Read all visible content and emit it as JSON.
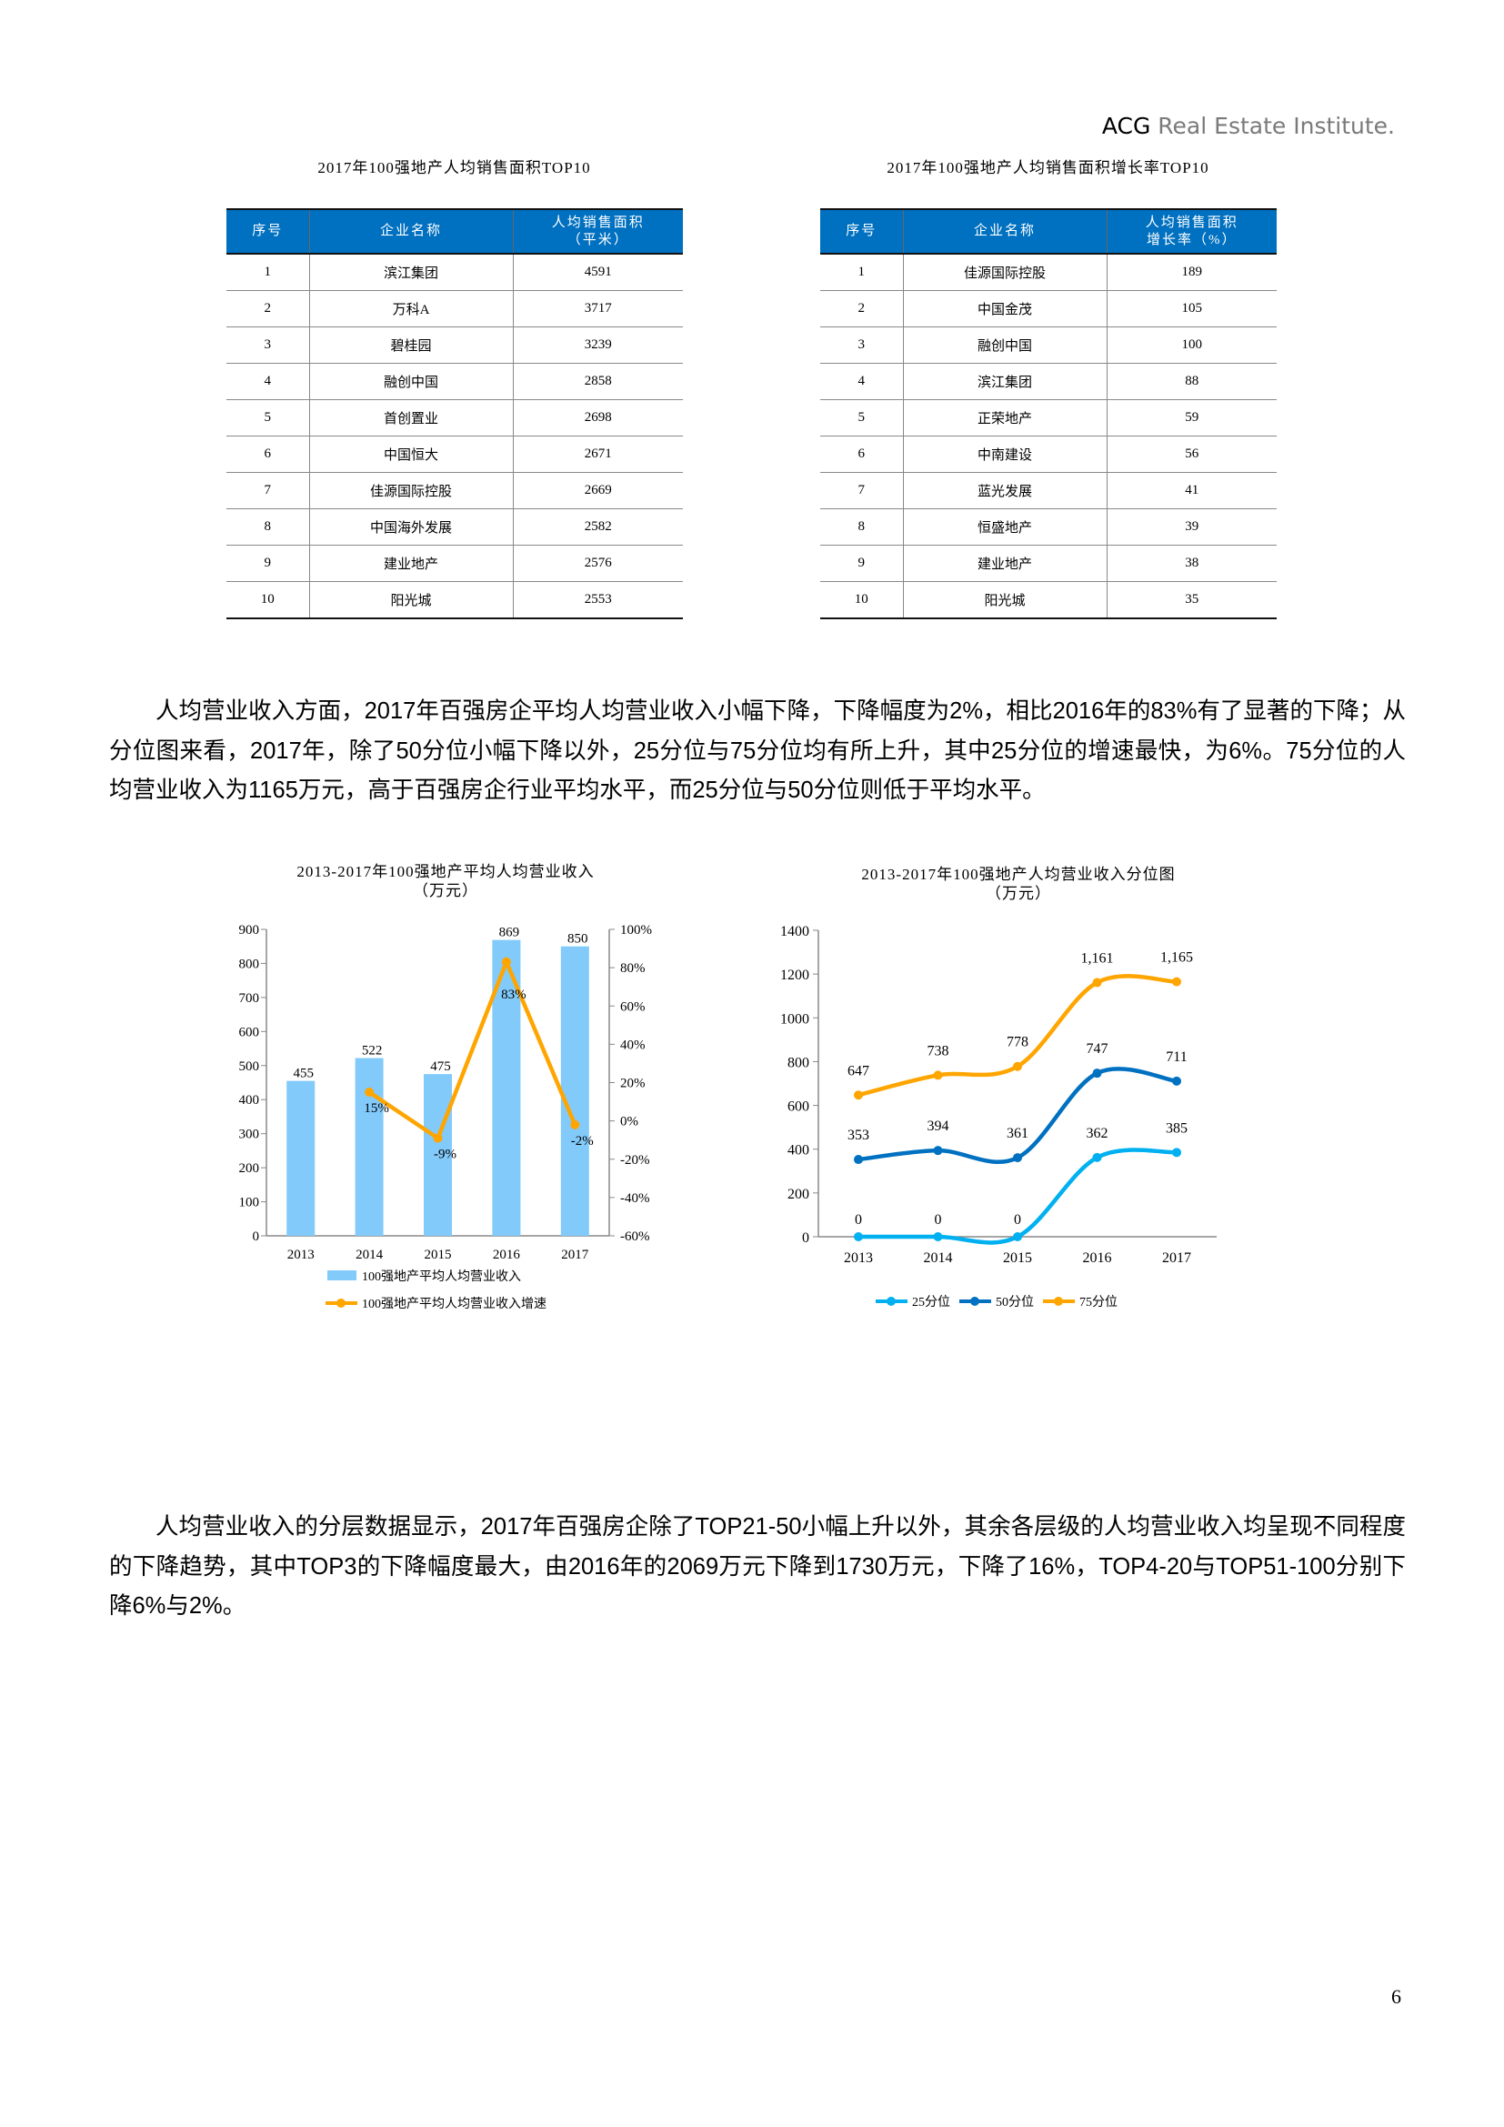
{
  "header": {
    "brand_bold": "ACG",
    "brand_rest": " Real Estate Institute."
  },
  "table1": {
    "title": "2017年100强地产人均销售面积TOP10",
    "headers": [
      "序号",
      "企业名称",
      "人均销售面积",
      "（平米）"
    ],
    "rows": [
      [
        "1",
        "滨江集团",
        "4591"
      ],
      [
        "2",
        "万科A",
        "3717"
      ],
      [
        "3",
        "碧桂园",
        "3239"
      ],
      [
        "4",
        "融创中国",
        "2858"
      ],
      [
        "5",
        "首创置业",
        "2698"
      ],
      [
        "6",
        "中国恒大",
        "2671"
      ],
      [
        "7",
        "佳源国际控股",
        "2669"
      ],
      [
        "8",
        "中国海外发展",
        "2582"
      ],
      [
        "9",
        "建业地产",
        "2576"
      ],
      [
        "10",
        "阳光城",
        "2553"
      ]
    ]
  },
  "table2": {
    "title": "2017年100强地产人均销售面积增长率TOP10",
    "headers": [
      "序号",
      "企业名称",
      "人均销售面积",
      "增长率（%）"
    ],
    "rows": [
      [
        "1",
        "佳源国际控股",
        "189"
      ],
      [
        "2",
        "中国金茂",
        "105"
      ],
      [
        "3",
        "融创中国",
        "100"
      ],
      [
        "4",
        "滨江集团",
        "88"
      ],
      [
        "5",
        "正荣地产",
        "59"
      ],
      [
        "6",
        "中南建设",
        "56"
      ],
      [
        "7",
        "蓝光发展",
        "41"
      ],
      [
        "8",
        "恒盛地产",
        "39"
      ],
      [
        "9",
        "建业地产",
        "38"
      ],
      [
        "10",
        "阳光城",
        "35"
      ]
    ]
  },
  "paragraph1": "人均营业收入方面，2017年百强房企平均人均营业收入小幅下降，下降幅度为2%，相比2016年的83%有了显著的下降；从分位图来看，2017年，除了50分位小幅下降以外，25分位与75分位均有所上升，其中25分位的增速最快，为6%。75分位的人均营业收入为1165万元，高于百强房企行业平均水平，而25分位与50分位则低于平均水平。",
  "paragraph2": "人均营业收入的分层数据显示，2017年百强房企除了TOP21-50小幅上升以外，其余各层级的人均营业收入均呈现不同程度的下降趋势，其中TOP3的下降幅度最大，由2016年的2069万元下降到1730万元，下降了16%，TOP4-20与TOP51-100分别下降6%与2%。",
  "page_number": "6",
  "chart_data": [
    {
      "type": "bar",
      "title": "2013-2017年100强地产平均人均营业收入",
      "subtitle": "（万元）",
      "categories": [
        "2013",
        "2014",
        "2015",
        "2016",
        "2017"
      ],
      "series": [
        {
          "name": "100强地产平均人均营业收入",
          "kind": "bar",
          "axis": "left",
          "values": [
            455,
            522,
            475,
            869,
            850
          ],
          "labels": [
            "455",
            "522",
            "475",
            "869",
            "850"
          ],
          "color": "#82CAFA"
        },
        {
          "name": "100强地产平均人均营业收入增速",
          "kind": "line",
          "axis": "right",
          "values": [
            null,
            15,
            -9,
            83,
            -2
          ],
          "labels": [
            "",
            "15%",
            "-9%",
            "83%",
            "-2%"
          ],
          "color": "#FFA500"
        }
      ],
      "ylim": [
        0,
        900
      ],
      "yticks": [
        "0",
        "100",
        "200",
        "300",
        "400",
        "500",
        "600",
        "700",
        "800",
        "900"
      ],
      "y2lim": [
        -60,
        100
      ],
      "y2ticks": [
        "-60%",
        "-40%",
        "-20%",
        "0%",
        "20%",
        "40%",
        "60%",
        "80%",
        "100%"
      ],
      "grid": false,
      "legend": "bottom"
    },
    {
      "type": "line",
      "title": "2013-2017年100强地产人均营业收入分位图",
      "subtitle": "（万元）",
      "categories": [
        "2013",
        "2014",
        "2015",
        "2016",
        "2017"
      ],
      "series": [
        {
          "name": "25分位",
          "values": [
            0,
            0,
            0,
            362,
            385
          ],
          "labels": [
            "0",
            "0",
            "0",
            "362",
            "385"
          ],
          "color": "#00B0F0"
        },
        {
          "name": "50分位",
          "values": [
            353,
            394,
            361,
            747,
            711
          ],
          "labels": [
            "353",
            "394",
            "361",
            "747",
            "711"
          ],
          "color": "#0070C0"
        },
        {
          "name": "75分位",
          "values": [
            647,
            738,
            778,
            1161,
            1165
          ],
          "labels": [
            "647",
            "738",
            "778",
            "1,161",
            "1,165"
          ],
          "color": "#FFA500"
        }
      ],
      "ylim": [
        0,
        1400
      ],
      "yticks": [
        "0",
        "200",
        "400",
        "600",
        "800",
        "1000",
        "1200",
        "1400"
      ],
      "grid": false,
      "legend": "bottom",
      "smooth": true
    }
  ]
}
